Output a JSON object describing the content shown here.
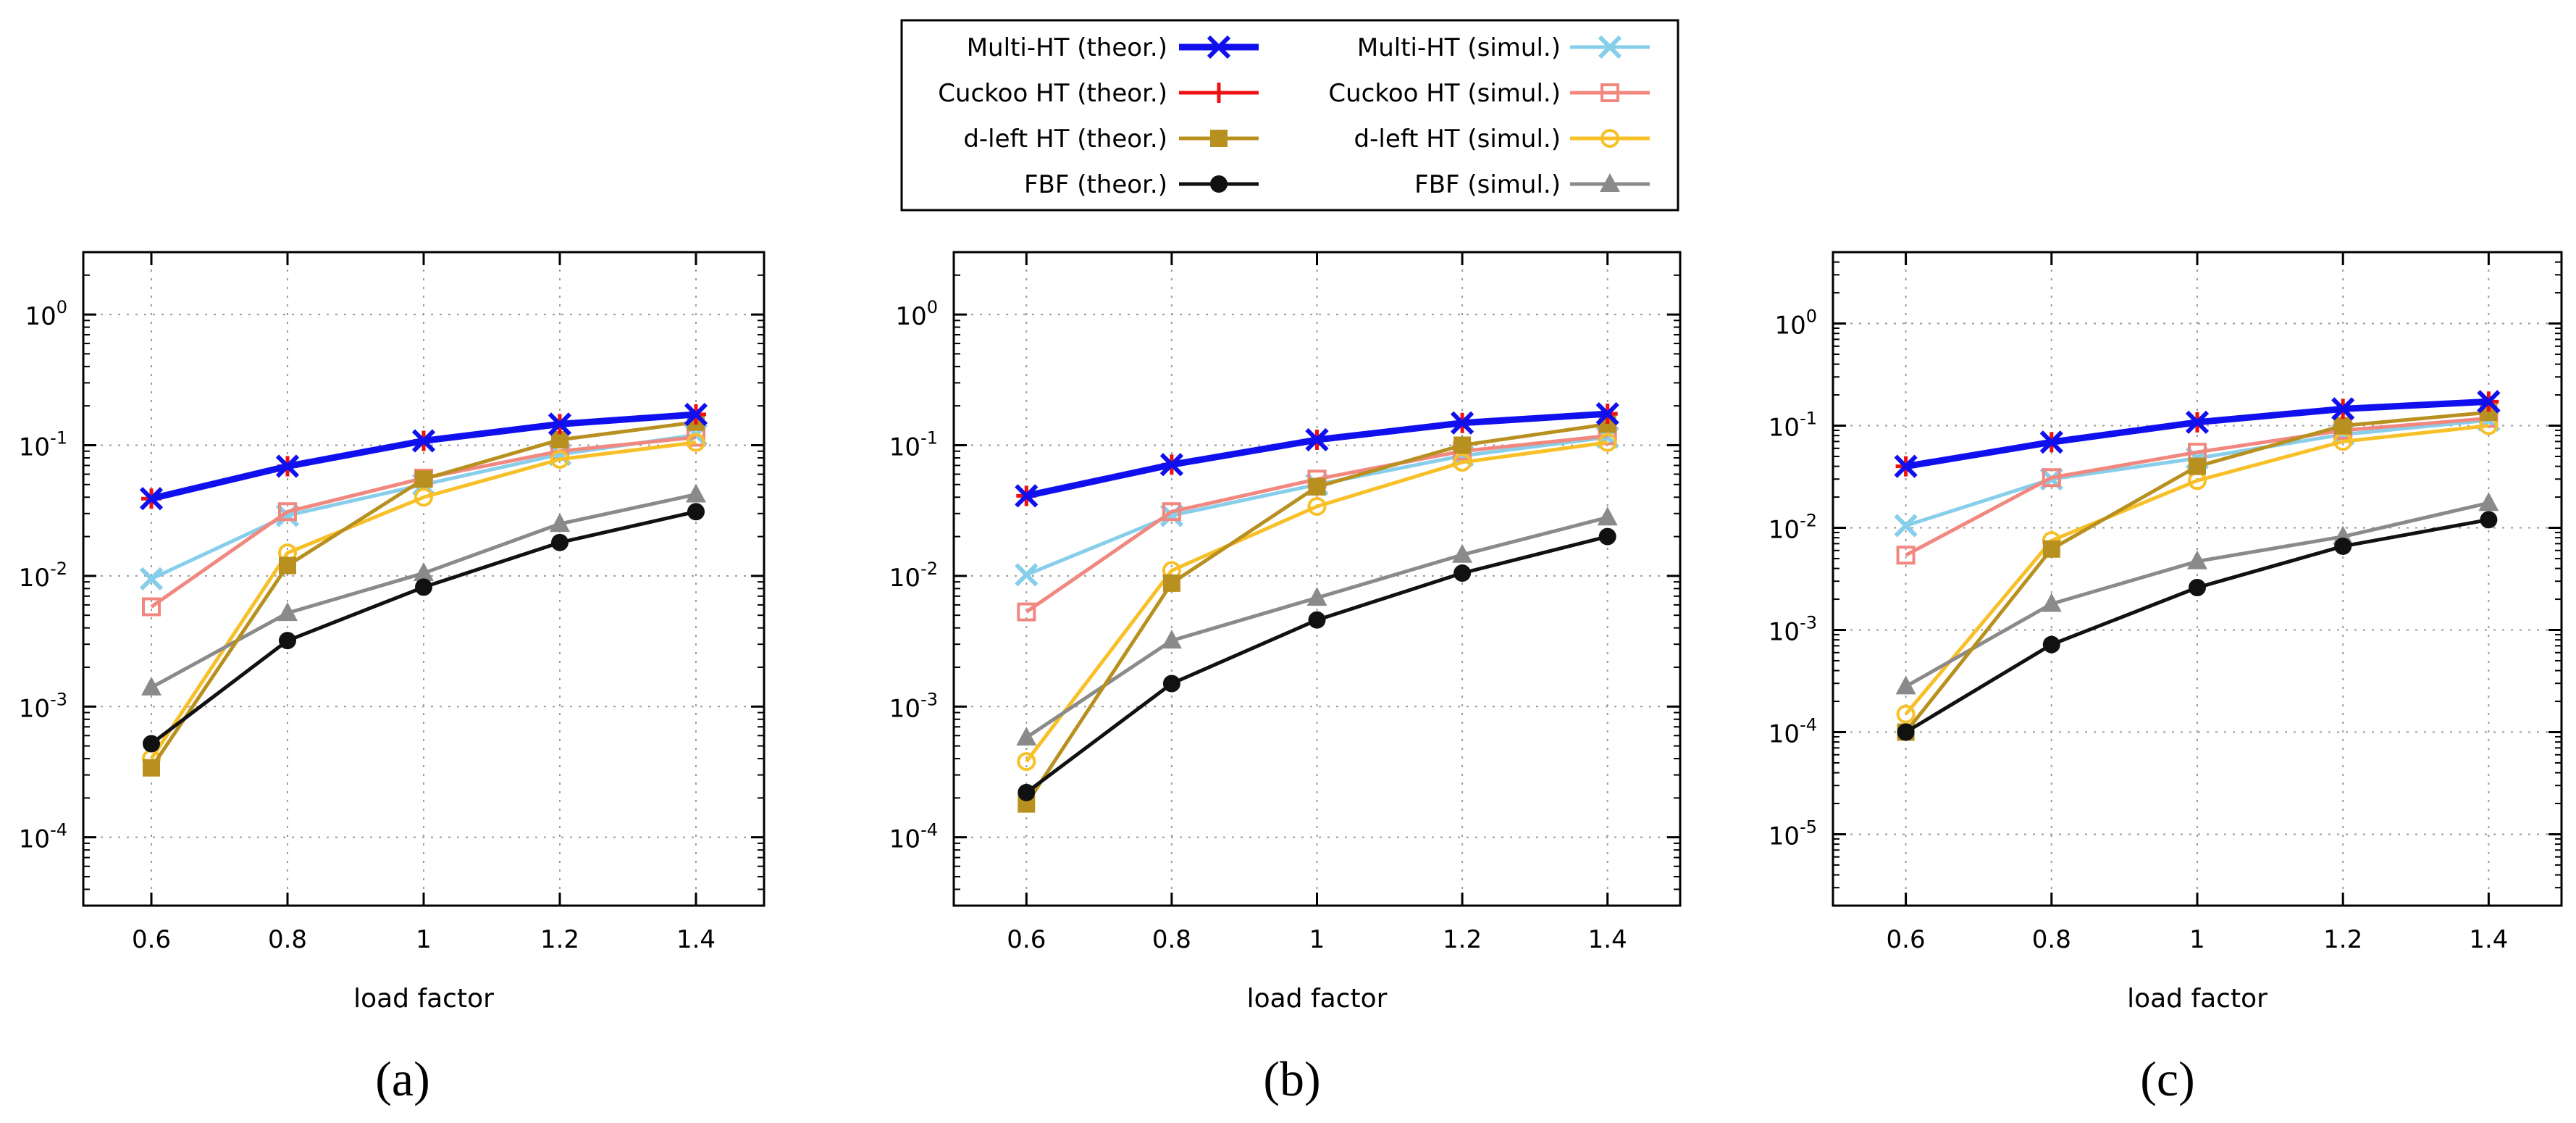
{
  "legend": {
    "entries": [
      {
        "key": "multi_theor",
        "label": "Multi-HT (theor.)",
        "color": "#1010ee",
        "marker": "x",
        "width": 9
      },
      {
        "key": "cuckoo_theor",
        "label": "Cuckoo HT (theor.)",
        "color": "#ee1111",
        "marker": "plus",
        "width": 5
      },
      {
        "key": "dleft_theor",
        "label": "d-left HT (theor.)",
        "color": "#b8901f",
        "marker": "square",
        "width": 5
      },
      {
        "key": "fbf_theor",
        "label": "FBF (theor.)",
        "color": "#111111",
        "marker": "circle",
        "width": 5
      },
      {
        "key": "multi_simul",
        "label": "Multi-HT (simul.)",
        "color": "#87ceeb",
        "marker": "x",
        "width": 5
      },
      {
        "key": "cuckoo_simul",
        "label": "Cuckoo HT (simul.)",
        "color": "#f08880",
        "marker": "square-open",
        "width": 5
      },
      {
        "key": "dleft_simul",
        "label": "d-left HT (simul.)",
        "color": "#f8c028",
        "marker": "circle-open",
        "width": 5
      },
      {
        "key": "fbf_simul",
        "label": "FBF (simul.)",
        "color": "#8a8a8a",
        "marker": "triangle",
        "width": 5
      }
    ]
  },
  "chart_data": [
    {
      "type": "line",
      "panel_label": "(a)",
      "xlabel": "load factor",
      "ylabel": "",
      "yscale": "log",
      "ylim": [
        3e-05,
        3
      ],
      "xlim": [
        0.5,
        1.5
      ],
      "x": [
        0.6,
        0.8,
        1.0,
        1.2,
        1.4
      ],
      "x_tick_labels": [
        "0.6",
        "0.8",
        "1",
        "1.2",
        "1.4"
      ],
      "y_ticks": [
        {
          "base": "10",
          "exp": "0",
          "value": 1
        },
        {
          "base": "10",
          "exp": "-1",
          "value": 0.1
        },
        {
          "base": "10",
          "exp": "-2",
          "value": 0.01
        },
        {
          "base": "10",
          "exp": "-3",
          "value": 0.001
        },
        {
          "base": "10",
          "exp": "-4",
          "value": 0.0001
        }
      ],
      "grid": true,
      "series": [
        {
          "key": "multi_simul",
          "values": [
            0.0095,
            0.029,
            0.05,
            0.085,
            0.12
          ]
        },
        {
          "key": "cuckoo_simul",
          "values": [
            0.0058,
            0.031,
            0.056,
            0.09,
            0.115
          ]
        },
        {
          "key": "dleft_simul",
          "values": [
            0.0004,
            0.015,
            0.04,
            0.078,
            0.105
          ]
        },
        {
          "key": "fbf_simul",
          "values": [
            0.0014,
            0.0052,
            0.0105,
            0.025,
            0.042
          ]
        },
        {
          "key": "dleft_theor",
          "values": [
            0.00034,
            0.012,
            0.055,
            0.11,
            0.15
          ]
        },
        {
          "key": "fbf_theor",
          "values": [
            0.00052,
            0.0032,
            0.0082,
            0.018,
            0.031
          ]
        },
        {
          "key": "cuckoo_theor",
          "values": [
            0.039,
            0.069,
            0.108,
            0.145,
            0.172
          ]
        },
        {
          "key": "multi_theor",
          "values": [
            0.039,
            0.069,
            0.108,
            0.145,
            0.172
          ]
        }
      ]
    },
    {
      "type": "line",
      "panel_label": "(b)",
      "xlabel": "load factor",
      "ylabel": "",
      "yscale": "log",
      "ylim": [
        3e-05,
        3
      ],
      "xlim": [
        0.5,
        1.5
      ],
      "x": [
        0.6,
        0.8,
        1.0,
        1.2,
        1.4
      ],
      "x_tick_labels": [
        "0.6",
        "0.8",
        "1",
        "1.2",
        "1.4"
      ],
      "y_ticks": [
        {
          "base": "10",
          "exp": "0",
          "value": 1
        },
        {
          "base": "10",
          "exp": "-1",
          "value": 0.1
        },
        {
          "base": "10",
          "exp": "-2",
          "value": 0.01
        },
        {
          "base": "10",
          "exp": "-3",
          "value": 0.001
        },
        {
          "base": "10",
          "exp": "-4",
          "value": 0.0001
        }
      ],
      "grid": true,
      "series": [
        {
          "key": "multi_simul",
          "values": [
            0.0102,
            0.029,
            0.05,
            0.083,
            0.115
          ]
        },
        {
          "key": "cuckoo_simul",
          "values": [
            0.0053,
            0.031,
            0.055,
            0.09,
            0.118
          ]
        },
        {
          "key": "dleft_simul",
          "values": [
            0.00038,
            0.011,
            0.034,
            0.074,
            0.105
          ]
        },
        {
          "key": "fbf_simul",
          "values": [
            0.00058,
            0.0032,
            0.0068,
            0.0145,
            0.028
          ]
        },
        {
          "key": "dleft_theor",
          "values": [
            0.00018,
            0.0088,
            0.048,
            0.1,
            0.145
          ]
        },
        {
          "key": "fbf_theor",
          "values": [
            0.00022,
            0.0015,
            0.0046,
            0.0105,
            0.02
          ]
        },
        {
          "key": "cuckoo_theor",
          "values": [
            0.041,
            0.071,
            0.11,
            0.148,
            0.174
          ]
        },
        {
          "key": "multi_theor",
          "values": [
            0.041,
            0.071,
            0.11,
            0.148,
            0.174
          ]
        }
      ]
    },
    {
      "type": "line",
      "panel_label": "(c)",
      "xlabel": "load factor",
      "ylabel": "",
      "yscale": "log",
      "ylim": [
        2e-06,
        5
      ],
      "xlim": [
        0.5,
        1.5
      ],
      "x": [
        0.6,
        0.8,
        1.0,
        1.2,
        1.4
      ],
      "x_tick_labels": [
        "0.6",
        "0.8",
        "1",
        "1.2",
        "1.4"
      ],
      "y_ticks": [
        {
          "base": "10",
          "exp": "0",
          "value": 1
        },
        {
          "base": "10",
          "exp": "-1",
          "value": 0.1
        },
        {
          "base": "10",
          "exp": "-2",
          "value": 0.01
        },
        {
          "base": "10",
          "exp": "-3",
          "value": 0.001
        },
        {
          "base": "10",
          "exp": "-4",
          "value": 0.0001
        },
        {
          "base": "10",
          "exp": "-5",
          "value": 1e-05
        }
      ],
      "grid": true,
      "series": [
        {
          "key": "multi_simul",
          "values": [
            0.0105,
            0.03,
            0.048,
            0.082,
            0.113
          ]
        },
        {
          "key": "cuckoo_simul",
          "values": [
            0.0054,
            0.031,
            0.055,
            0.09,
            0.118
          ]
        },
        {
          "key": "dleft_simul",
          "values": [
            0.00015,
            0.0075,
            0.029,
            0.07,
            0.1
          ]
        },
        {
          "key": "fbf_simul",
          "values": [
            0.00028,
            0.0018,
            0.0047,
            0.0082,
            0.0175
          ]
        },
        {
          "key": "dleft_theor",
          "values": [
            0.0001,
            0.0062,
            0.04,
            0.1,
            0.135
          ]
        },
        {
          "key": "fbf_theor",
          "values": [
            0.0001,
            0.00072,
            0.0026,
            0.0066,
            0.012
          ]
        },
        {
          "key": "cuckoo_theor",
          "values": [
            0.04,
            0.069,
            0.108,
            0.146,
            0.172
          ]
        },
        {
          "key": "multi_theor",
          "values": [
            0.04,
            0.069,
            0.108,
            0.146,
            0.172
          ]
        }
      ]
    }
  ]
}
